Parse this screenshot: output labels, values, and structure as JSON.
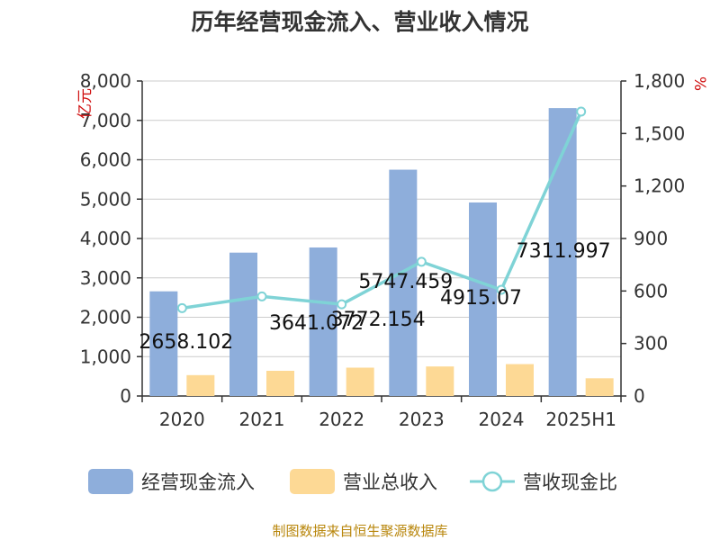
{
  "chart_data": {
    "type": "bar",
    "title": "历年经营现金流入、营业收入情况",
    "categories": [
      "2020",
      "2021",
      "2022",
      "2023",
      "2024",
      "2025H1"
    ],
    "y_left": {
      "unit": "亿元",
      "min": 0,
      "max": 8000,
      "ticks": [
        "0",
        "1,000",
        "2,000",
        "3,000",
        "4,000",
        "5,000",
        "6,000",
        "7,000",
        "8,000"
      ]
    },
    "y_right": {
      "unit": "%",
      "min": 0,
      "max": 1800,
      "ticks": [
        "0",
        "300",
        "600",
        "900",
        "1,200",
        "1,500",
        "1,800"
      ]
    },
    "series": [
      {
        "name": "经营现金流入",
        "kind": "bar",
        "axis": "left",
        "color": "#8eaedb",
        "values": [
          2658.102,
          3641.072,
          3772.154,
          5747.459,
          4915.07,
          7311.997
        ],
        "labels": [
          "2658.102",
          "3641.072",
          "3772.154",
          "5747.459",
          "4915.07",
          "7311.997"
        ]
      },
      {
        "name": "营业总收入",
        "kind": "bar",
        "axis": "left",
        "color": "#fdd995",
        "values": [
          530,
          640,
          720,
          750,
          810,
          450
        ]
      },
      {
        "name": "营收现金比",
        "kind": "line",
        "axis": "right",
        "color": "#7fd3d6",
        "values": [
          502,
          569,
          524,
          767,
          607,
          1625
        ]
      }
    ],
    "legend_position": "bottom",
    "grid": true
  },
  "footer": {
    "source": "制图数据来自恒生聚源数据库"
  }
}
